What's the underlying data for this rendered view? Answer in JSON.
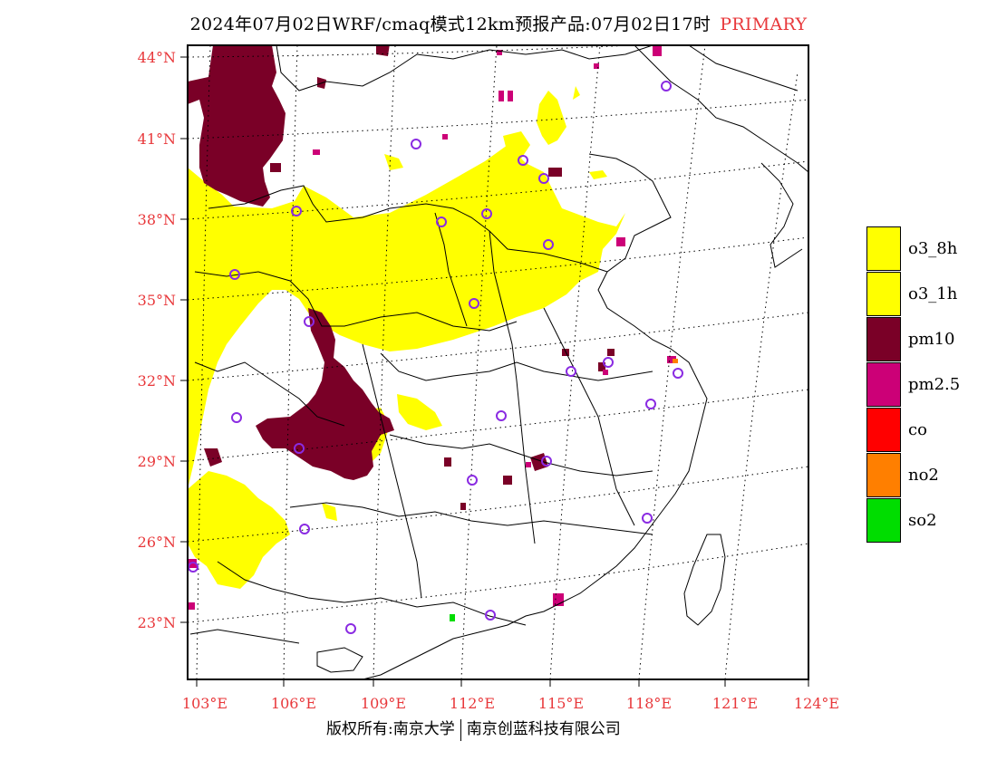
{
  "title": {
    "text": "2024年07月02日WRF/cmaq模式12km预报产品:07月02日17时",
    "tag": "PRIMARY"
  },
  "lat_labels": [
    "44°N",
    "41°N",
    "38°N",
    "35°N",
    "32°N",
    "29°N",
    "26°N",
    "23°N"
  ],
  "lon_labels": [
    "103°E",
    "106°E",
    "109°E",
    "112°E",
    "115°E",
    "118°E",
    "121°E",
    "124°E"
  ],
  "legend": [
    {
      "label": "o3_8h",
      "color": "#ffff00"
    },
    {
      "label": "o3_1h",
      "color": "#ffff00"
    },
    {
      "label": "pm10",
      "color": "#7a0027"
    },
    {
      "label": "pm2.5",
      "color": "#cc0077"
    },
    {
      "label": "co",
      "color": "#ff0000"
    },
    {
      "label": "no2",
      "color": "#ff7f00"
    },
    {
      "label": "so2",
      "color": "#00dd00"
    }
  ],
  "footer": {
    "left": "版权所有:南京大学",
    "right": "南京创蓝科技有限公司"
  },
  "colors": {
    "tick_label": "#e8383b",
    "o3": "#ffff00",
    "pm10": "#7a0027",
    "pm25": "#cc0077",
    "station_marker": "#8a2be2"
  }
}
